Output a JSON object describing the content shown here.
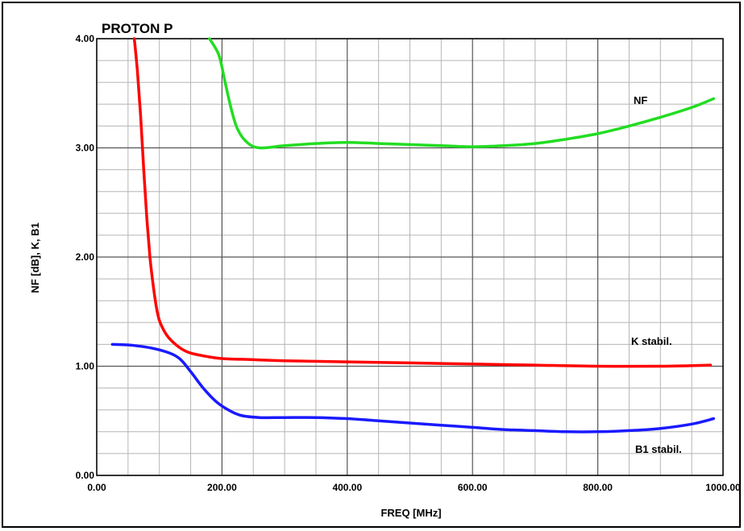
{
  "chart_data": {
    "type": "line",
    "title": "PROTON P",
    "xlabel": "FREQ [MHz]",
    "ylabel": "NF [dB], K, B1",
    "xlim": [
      0,
      1000
    ],
    "ylim": [
      0,
      4
    ],
    "x_ticks": [
      "0.00",
      "200.00",
      "400.00",
      "600.00",
      "800.00",
      "1000.00"
    ],
    "y_ticks": [
      "0.00",
      "1.00",
      "2.00",
      "3.00",
      "4.00"
    ],
    "grid": true,
    "series": [
      {
        "name": "NF",
        "color": "#22dd22",
        "x": [
          180,
          195,
          205,
          215,
          225,
          240,
          260,
          300,
          350,
          400,
          450,
          500,
          550,
          600,
          650,
          700,
          750,
          800,
          850,
          900,
          950,
          985
        ],
        "y": [
          4.0,
          3.85,
          3.6,
          3.35,
          3.17,
          3.05,
          3.0,
          3.02,
          3.04,
          3.05,
          3.04,
          3.03,
          3.02,
          3.01,
          3.02,
          3.04,
          3.08,
          3.13,
          3.2,
          3.28,
          3.37,
          3.45
        ]
      },
      {
        "name": "K stabil.",
        "color": "#ff0000",
        "x": [
          60,
          65,
          70,
          75,
          80,
          85,
          90,
          95,
          100,
          110,
          120,
          135,
          150,
          175,
          200,
          250,
          300,
          400,
          500,
          600,
          700,
          800,
          900,
          980
        ],
        "y": [
          4.0,
          3.7,
          3.3,
          2.8,
          2.35,
          2.0,
          1.75,
          1.55,
          1.42,
          1.3,
          1.23,
          1.16,
          1.12,
          1.09,
          1.07,
          1.06,
          1.05,
          1.04,
          1.03,
          1.02,
          1.01,
          1.0,
          1.0,
          1.01
        ]
      },
      {
        "name": "B1 stabil.",
        "color": "#1a1aff",
        "x": [
          25,
          60,
          100,
          130,
          150,
          170,
          190,
          210,
          230,
          260,
          300,
          350,
          400,
          450,
          500,
          550,
          600,
          650,
          700,
          750,
          800,
          850,
          900,
          950,
          985
        ],
        "y": [
          1.2,
          1.19,
          1.15,
          1.08,
          0.95,
          0.8,
          0.68,
          0.6,
          0.55,
          0.53,
          0.53,
          0.53,
          0.52,
          0.5,
          0.48,
          0.46,
          0.44,
          0.42,
          0.41,
          0.4,
          0.4,
          0.41,
          0.43,
          0.47,
          0.52
        ]
      }
    ],
    "annotations": [
      "NF",
      "K stabil.",
      "B1 stabil."
    ]
  }
}
